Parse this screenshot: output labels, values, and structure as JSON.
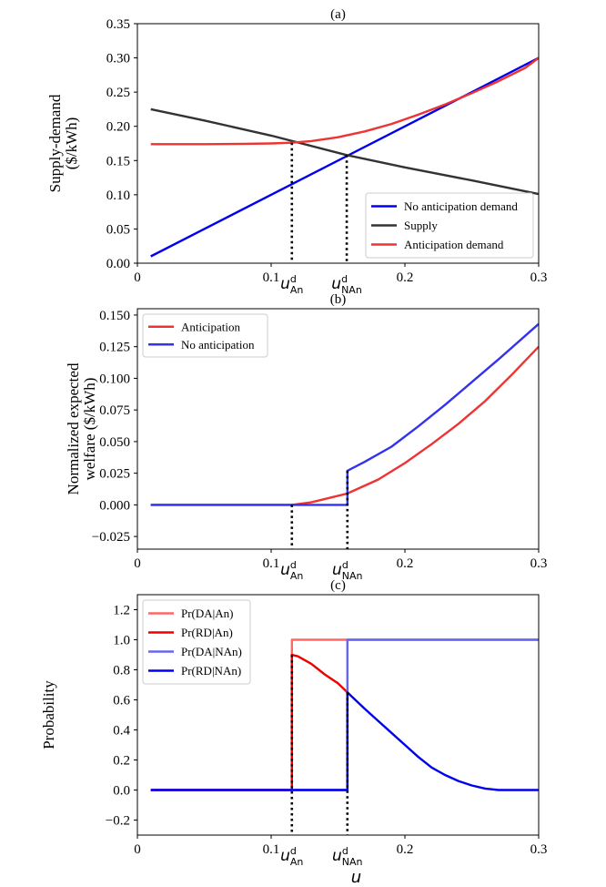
{
  "chart_data": [
    {
      "id": "a",
      "type": "line",
      "title": "(a)",
      "xlabel": "",
      "ylabel_lines": [
        "Supply-demand",
        "($/kWh)"
      ],
      "xlim": [
        0,
        0.3
      ],
      "ylim": [
        0,
        0.35
      ],
      "xticks": [
        {
          "value": 0,
          "label": "0"
        },
        {
          "value": 0.1,
          "label": "0.1"
        },
        {
          "value": 0.2,
          "label": "0.2"
        },
        {
          "value": 0.3,
          "label": "0.3"
        }
      ],
      "yticks": [
        {
          "value": 0.0,
          "label": "0.00"
        },
        {
          "value": 0.05,
          "label": "0.05"
        },
        {
          "value": 0.1,
          "label": "0.10"
        },
        {
          "value": 0.15,
          "label": "0.15"
        },
        {
          "value": 0.2,
          "label": "0.20"
        },
        {
          "value": 0.25,
          "label": "0.25"
        },
        {
          "value": 0.3,
          "label": "0.30"
        },
        {
          "value": 0.35,
          "label": "0.35"
        }
      ],
      "markers": [
        {
          "x": 0.1155,
          "y": 0.176,
          "label_main": "u",
          "label_sup": "d",
          "label_sub": "An"
        },
        {
          "x": 0.1565,
          "y": 0.158,
          "label_main": "u",
          "label_sup": "d",
          "label_sub": "NAn"
        }
      ],
      "legend_position": "bottom-right",
      "series": [
        {
          "name": "No anticipation demand",
          "color": "#0000ee",
          "x": [
            0.01,
            0.3
          ],
          "y": [
            0.01,
            0.3
          ]
        },
        {
          "name": "Supply",
          "color": "#333333",
          "x": [
            0.01,
            0.05,
            0.1,
            0.1565,
            0.2,
            0.25,
            0.3
          ],
          "y": [
            0.225,
            0.2085,
            0.1865,
            0.158,
            0.14,
            0.121,
            0.101
          ]
        },
        {
          "name": "Anticipation demand",
          "color": "#ee3333",
          "x": [
            0.01,
            0.05,
            0.08,
            0.1,
            0.1155,
            0.13,
            0.15,
            0.17,
            0.19,
            0.21,
            0.23,
            0.25,
            0.27,
            0.29,
            0.3
          ],
          "y": [
            0.174,
            0.174,
            0.1745,
            0.175,
            0.176,
            0.1785,
            0.184,
            0.1925,
            0.2035,
            0.217,
            0.232,
            0.2485,
            0.266,
            0.2855,
            0.3
          ]
        }
      ]
    },
    {
      "id": "b",
      "type": "line",
      "title": "(b)",
      "xlabel": "",
      "ylabel_lines": [
        "Normalized expected",
        "welfare ($/kWh)"
      ],
      "xlim": [
        0,
        0.3
      ],
      "ylim": [
        -0.035,
        0.155
      ],
      "xticks": [
        {
          "value": 0,
          "label": "0"
        },
        {
          "value": 0.1,
          "label": "0.1"
        },
        {
          "value": 0.2,
          "label": "0.2"
        },
        {
          "value": 0.3,
          "label": "0.3"
        }
      ],
      "yticks": [
        {
          "value": -0.025,
          "label": "−0.025"
        },
        {
          "value": 0.0,
          "label": "0.000"
        },
        {
          "value": 0.025,
          "label": "0.025"
        },
        {
          "value": 0.05,
          "label": "0.050"
        },
        {
          "value": 0.075,
          "label": "0.075"
        },
        {
          "value": 0.1,
          "label": "0.100"
        },
        {
          "value": 0.125,
          "label": "0.125"
        },
        {
          "value": 0.15,
          "label": "0.150"
        }
      ],
      "markers": [
        {
          "x": 0.1155,
          "y": 0.0,
          "label_main": "u",
          "label_sup": "d",
          "label_sub": "An"
        },
        {
          "x": 0.157,
          "y": 0.027,
          "label_main": "u",
          "label_sup": "d",
          "label_sub": "NAn"
        }
      ],
      "legend_position": "top-left",
      "series": [
        {
          "name": "Anticipation",
          "color": "#ee3333",
          "x": [
            0.01,
            0.1155,
            0.13,
            0.157,
            0.18,
            0.2,
            0.22,
            0.24,
            0.26,
            0.28,
            0.3
          ],
          "y": [
            0.0,
            0.0,
            0.002,
            0.009,
            0.02,
            0.033,
            0.048,
            0.064,
            0.082,
            0.103,
            0.125
          ]
        },
        {
          "name": "No anticipation",
          "color": "#3333ee",
          "x": [
            0.01,
            0.157,
            0.157,
            0.17,
            0.19,
            0.21,
            0.23,
            0.25,
            0.27,
            0.3
          ],
          "y": [
            0.0,
            0.0,
            0.027,
            0.034,
            0.046,
            0.062,
            0.079,
            0.097,
            0.115,
            0.143
          ]
        }
      ]
    },
    {
      "id": "c",
      "type": "line",
      "title": "(c)",
      "xlabel": "u",
      "ylabel_lines": [
        "Probability"
      ],
      "xlim": [
        0,
        0.3
      ],
      "ylim": [
        -0.3,
        1.3
      ],
      "xticks": [
        {
          "value": 0,
          "label": "0"
        },
        {
          "value": 0.1,
          "label": "0.1"
        },
        {
          "value": 0.2,
          "label": "0.2"
        },
        {
          "value": 0.3,
          "label": "0.3"
        }
      ],
      "yticks": [
        {
          "value": -0.2,
          "label": "−0.2"
        },
        {
          "value": 0.0,
          "label": "0.0"
        },
        {
          "value": 0.2,
          "label": "0.2"
        },
        {
          "value": 0.4,
          "label": "0.4"
        },
        {
          "value": 0.6,
          "label": "0.6"
        },
        {
          "value": 0.8,
          "label": "0.8"
        },
        {
          "value": 1.0,
          "label": "1.0"
        },
        {
          "value": 1.2,
          "label": "1.2"
        }
      ],
      "markers": [
        {
          "x": 0.1155,
          "y": 0.9,
          "label_main": "u",
          "label_sup": "d",
          "label_sub": "An"
        },
        {
          "x": 0.157,
          "y": 0.65,
          "label_main": "u",
          "label_sup": "d",
          "label_sub": "NAn"
        }
      ],
      "legend_position": "top-left",
      "series": [
        {
          "name": "Pr(DA|An)",
          "color": "#ff6666",
          "x": [
            0.01,
            0.1155,
            0.1155,
            0.3
          ],
          "y": [
            0.0,
            0.0,
            1.0,
            1.0
          ]
        },
        {
          "name": "Pr(RD|An)",
          "color": "#ee0000",
          "x": [
            0.01,
            0.1155,
            0.1155,
            0.12,
            0.13,
            0.14,
            0.15,
            0.157
          ],
          "y": [
            0.0,
            0.0,
            0.9,
            0.89,
            0.84,
            0.77,
            0.71,
            0.65
          ]
        },
        {
          "name": "Pr(DA|NAn)",
          "color": "#6666ee",
          "x": [
            0.01,
            0.157,
            0.157,
            0.3
          ],
          "y": [
            0.0,
            0.0,
            1.0,
            1.0
          ]
        },
        {
          "name": "Pr(RD|NAn)",
          "color": "#0000ee",
          "x": [
            0.01,
            0.157,
            0.157,
            0.17,
            0.18,
            0.19,
            0.2,
            0.21,
            0.22,
            0.23,
            0.24,
            0.25,
            0.26,
            0.27,
            0.28,
            0.3
          ],
          "y": [
            0.0,
            0.0,
            0.65,
            0.54,
            0.46,
            0.38,
            0.3,
            0.22,
            0.15,
            0.1,
            0.06,
            0.03,
            0.01,
            0.0,
            0.0,
            0.0
          ]
        }
      ]
    }
  ]
}
